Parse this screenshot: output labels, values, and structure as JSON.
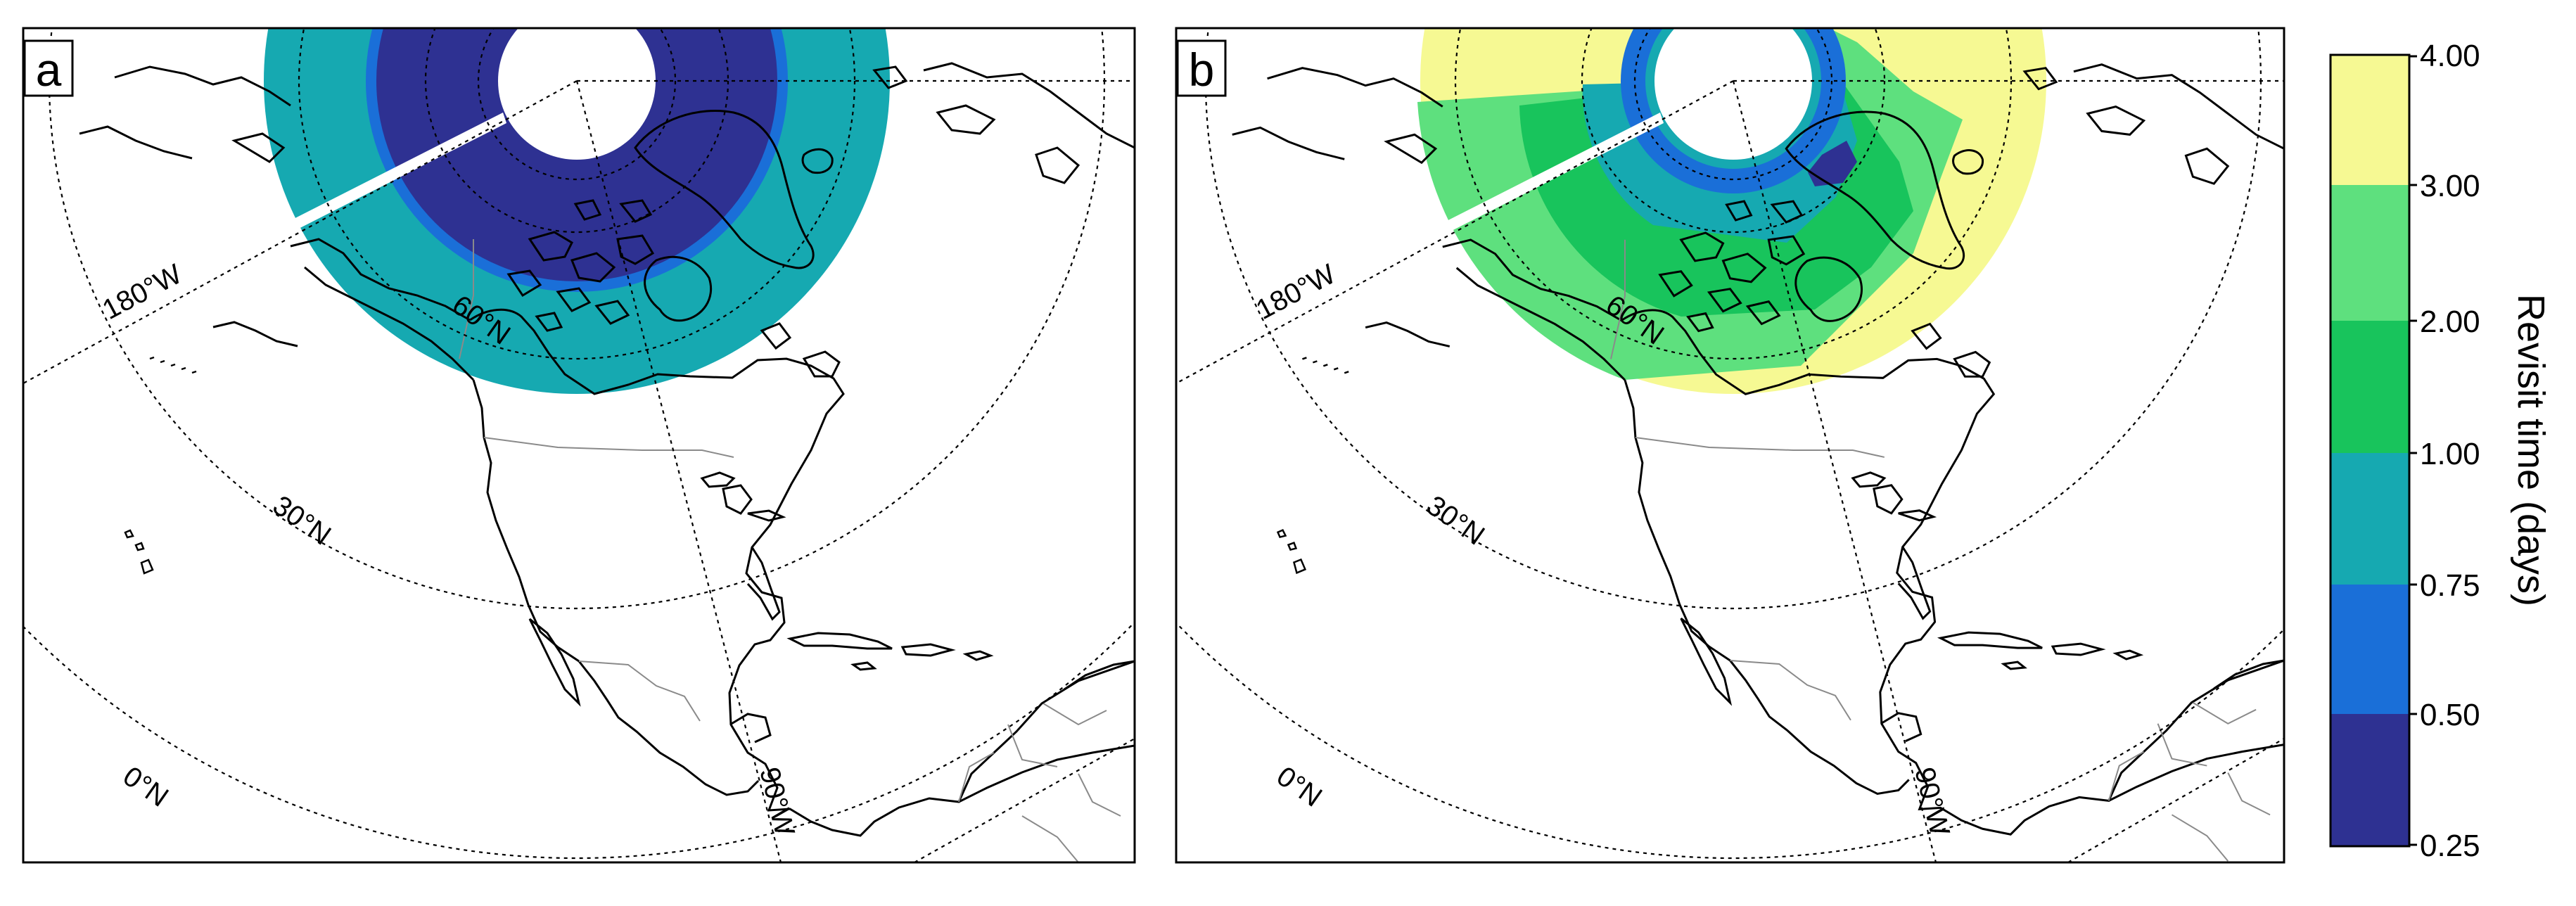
{
  "panels": [
    {
      "label": "a",
      "lat_labels": [
        "60°N",
        "30°N",
        "0°N"
      ],
      "lon_labels": [
        "180°W",
        "90°W"
      ],
      "coverage": {
        "inner": "0.25 – 0.50",
        "middle": "0.50 – 0.75",
        "outer": "0.75 – 1.00"
      }
    },
    {
      "label": "b",
      "lat_labels": [
        "60°N",
        "30°N",
        "0°N"
      ],
      "lon_labels": [
        "180°W",
        "90°W"
      ],
      "coverage": {
        "inner": "0.75 – 1.00",
        "middle": "1.00 – 3.00",
        "outer": "3.00 – 4.00"
      }
    }
  ],
  "colorbar": {
    "title": "Revisit time (days)",
    "tick_labels": [
      "4.00",
      "3.00",
      "2.00",
      "1.00",
      "0.75",
      "0.50",
      "0.25"
    ],
    "bins": [
      {
        "range": "0.25 – 0.50",
        "color": "#2e3192"
      },
      {
        "range": "0.50 – 0.75",
        "color": "#1a6fd8"
      },
      {
        "range": "0.75 – 1.00",
        "color": "#16a9b1"
      },
      {
        "range": "1.00 – 2.00",
        "color": "#18c45c"
      },
      {
        "range": "2.00 – 3.00",
        "color": "#5ee07e"
      },
      {
        "range": "3.00 – 4.00",
        "color": "#f6f993"
      }
    ]
  },
  "colors": {
    "band_025_050": "#2e3192",
    "band_050_075": "#1a6fd8",
    "band_075_100": "#16a9b1",
    "band_100_200": "#18c45c",
    "band_200_300": "#5ee07e",
    "band_300_400": "#f6f993",
    "coastline": "#000000",
    "borders": "#8a8a8a"
  }
}
